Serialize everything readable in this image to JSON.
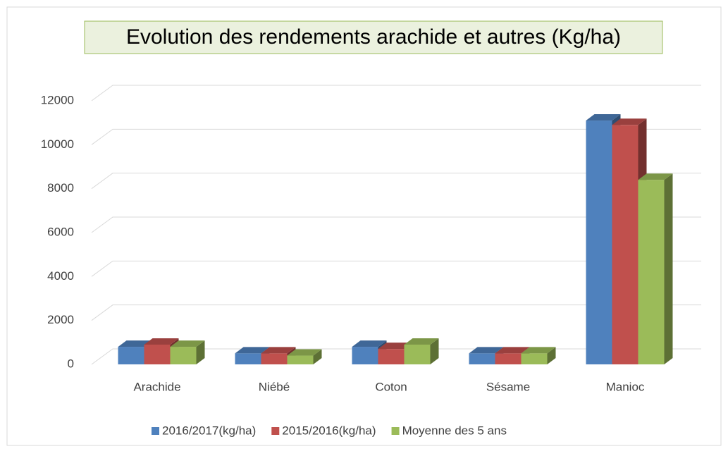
{
  "chart_data": {
    "type": "bar3d",
    "title": "Evolution des rendements arachide et autres (Kg/ha)",
    "categories": [
      "Arachide",
      "Niébé",
      "Coton",
      "Sésame",
      "Manioc"
    ],
    "series": [
      {
        "name": "2016/2017(kg/ha)",
        "color": "#4f81bd",
        "values": [
          800,
          500,
          800,
          500,
          11100
        ]
      },
      {
        "name": "2015/2016(kg/ha)",
        "color": "#c0504d",
        "values": [
          900,
          500,
          700,
          500,
          10900
        ]
      },
      {
        "name": "Moyenne des 5 ans",
        "color": "#9bbb59",
        "values": [
          800,
          400,
          900,
          500,
          8400
        ]
      }
    ],
    "ylim": [
      0,
      12000
    ],
    "yticks": [
      0,
      2000,
      4000,
      6000,
      8000,
      10000,
      12000
    ],
    "grid": true
  }
}
